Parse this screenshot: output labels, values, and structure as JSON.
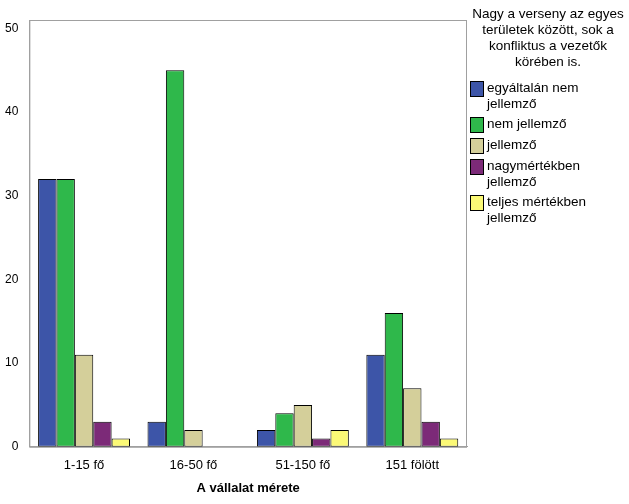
{
  "chart_data": {
    "type": "bar",
    "x_label": "A vállalat mérete",
    "legend_title": "Nagy a verseny az egyes területek között, sok a konfliktus a vezetők körében is.",
    "categories": [
      "1-15 fő",
      "16-50 fő",
      "51-150 fő",
      "151 fölött"
    ],
    "series": [
      {
        "name": "egyáltalán nem jellemző",
        "color": "#3d55a8",
        "values": [
          32,
          3,
          2,
          11
        ]
      },
      {
        "name": "nem jellemző",
        "color": "#2fb84b",
        "values": [
          32,
          45,
          4,
          16
        ]
      },
      {
        "name": "jellemző",
        "color": "#d4cf9a",
        "values": [
          11,
          2,
          5,
          7
        ]
      },
      {
        "name": "nagymértékben jellemző",
        "color": "#7c2a78",
        "values": [
          3,
          0,
          1,
          3
        ]
      },
      {
        "name": "teljes mértékben jellemző",
        "color": "#fbf976",
        "values": [
          1,
          0,
          2,
          1
        ]
      }
    ],
    "ylim": [
      0,
      51
    ],
    "yticks": [
      0,
      10,
      20,
      30,
      40,
      50
    ],
    "grid": false,
    "legend": "right"
  }
}
